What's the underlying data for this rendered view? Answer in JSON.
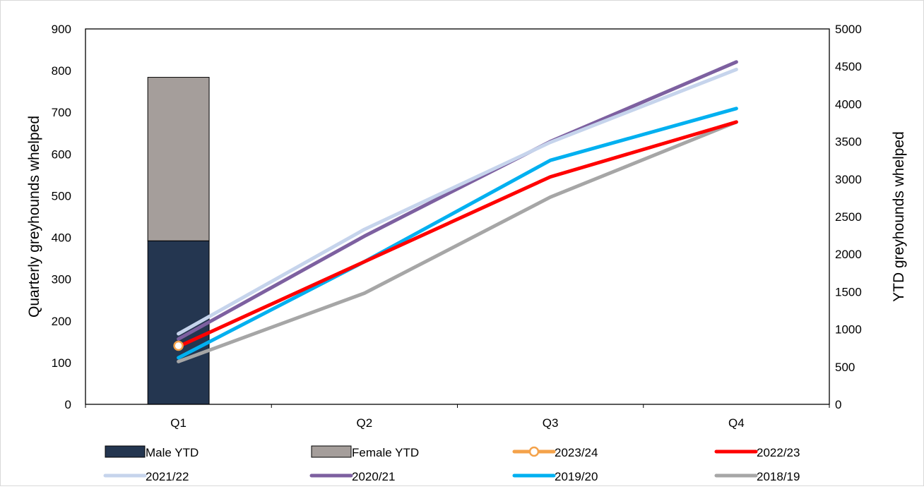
{
  "chart_data": {
    "type": "bar",
    "categories": [
      "Q1",
      "Q2",
      "Q3",
      "Q4"
    ],
    "y_left": {
      "label": "Quarterly greyhounds whelped",
      "range": [
        0,
        900
      ],
      "ticks": [
        "0",
        "100",
        "200",
        "300",
        "400",
        "500",
        "600",
        "700",
        "800",
        "900"
      ]
    },
    "y_right": {
      "label": "YTD greyhounds whelped",
      "range": [
        0,
        5000
      ],
      "ticks": [
        "0",
        "500",
        "1000",
        "1500",
        "2000",
        "2500",
        "3000",
        "3500",
        "4000",
        "4500",
        "5000"
      ]
    },
    "bars": [
      {
        "name": "Male YTD",
        "color": "#243650",
        "values": [
          392,
          null,
          null,
          null
        ]
      },
      {
        "name": "Female YTD",
        "color": "#a59e9b",
        "values": [
          392,
          null,
          null,
          null
        ]
      }
    ],
    "lines": [
      {
        "name": "2023/24",
        "color": "#f4a24a",
        "marker": "circle",
        "values": [
          780,
          null,
          null,
          null
        ]
      },
      {
        "name": "2022/23",
        "color": "#ff0000",
        "values": [
          770,
          1900,
          3030,
          3760
        ]
      },
      {
        "name": "2021/22",
        "color": "#c6d4ec",
        "values": [
          940,
          2330,
          3490,
          4460
        ]
      },
      {
        "name": "2020/21",
        "color": "#7d60a0",
        "values": [
          870,
          2240,
          3500,
          4560
        ]
      },
      {
        "name": "2019/20",
        "color": "#00b0f0",
        "values": [
          620,
          1900,
          3250,
          3940
        ]
      },
      {
        "name": "2018/19",
        "color": "#a6a6a6",
        "values": [
          570,
          1480,
          2760,
          3760
        ]
      }
    ],
    "grid": false,
    "legend_position": "bottom"
  }
}
